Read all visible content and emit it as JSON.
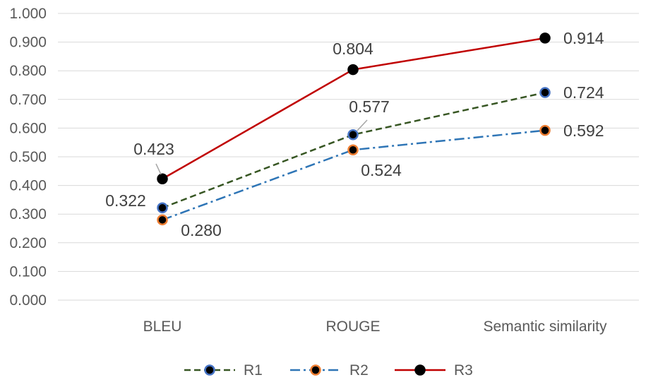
{
  "chart_data": {
    "type": "line",
    "categories": [
      "BLEU",
      "ROUGE",
      "Semantic similarity"
    ],
    "series": [
      {
        "name": "R1",
        "values": [
          0.322,
          0.577,
          0.724
        ],
        "labels": [
          "0.322",
          "0.577",
          "0.724"
        ],
        "line_color": "#375623",
        "marker_border": "#4472C4",
        "dash": "dash"
      },
      {
        "name": "R2",
        "values": [
          0.28,
          0.524,
          0.592
        ],
        "labels": [
          "0.280",
          "0.524",
          "0.592"
        ],
        "line_color": "#2E75B6",
        "marker_border": "#ED7D31",
        "dash": "dash-dot"
      },
      {
        "name": "R3",
        "values": [
          0.423,
          0.804,
          0.914
        ],
        "labels": [
          "0.423",
          "0.804",
          "0.914"
        ],
        "line_color": "#C00000",
        "marker_border": "#000000",
        "dash": "solid"
      }
    ],
    "ylim": [
      0,
      1
    ],
    "yticks": [
      "0.000",
      "0.100",
      "0.200",
      "0.300",
      "0.400",
      "0.500",
      "0.600",
      "0.700",
      "0.800",
      "0.900",
      "1.000"
    ],
    "grid": true,
    "legend_position": "bottom",
    "marker_fill": "#000000",
    "grid_color": "#D9D9D9",
    "title": "",
    "xlabel": "",
    "ylabel": ""
  }
}
